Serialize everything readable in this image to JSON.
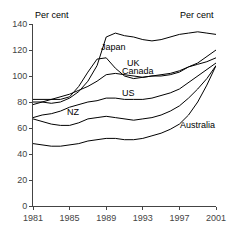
{
  "chart_data": {
    "type": "line",
    "x": [
      1981,
      1982,
      1983,
      1984,
      1985,
      1986,
      1987,
      1988,
      1989,
      1990,
      1991,
      1992,
      1993,
      1994,
      1995,
      1996,
      1997,
      1998,
      1999,
      2000,
      2001
    ],
    "series": [
      {
        "name": "Japan",
        "color": "#000000",
        "values": [
          80,
          80,
          79,
          80,
          83,
          88,
          96,
          108,
          130,
          133,
          131,
          130,
          128,
          127,
          128,
          130,
          132,
          133,
          134,
          133,
          132
        ]
      },
      {
        "name": "UK",
        "color": "#000000",
        "values": [
          82,
          82,
          82,
          82,
          84,
          92,
          103,
          113,
          114,
          106,
          100,
          98,
          99,
          100,
          100,
          101,
          103,
          107,
          110,
          115,
          120
        ]
      },
      {
        "name": "Canada",
        "color": "#000000",
        "values": [
          78,
          80,
          82,
          84,
          86,
          89,
          92,
          96,
          101,
          102,
          101,
          100,
          99,
          100,
          101,
          102,
          104,
          107,
          109,
          111,
          114
        ]
      },
      {
        "name": "US",
        "color": "#000000",
        "values": [
          68,
          70,
          71,
          73,
          76,
          78,
          80,
          81,
          83,
          83,
          82,
          82,
          82,
          83,
          85,
          87,
          90,
          95,
          100,
          105,
          110
        ]
      },
      {
        "name": "NZ",
        "color": "#000000",
        "values": [
          67,
          65,
          63,
          62,
          62,
          64,
          67,
          68,
          69,
          68,
          67,
          66,
          67,
          68,
          70,
          73,
          77,
          83,
          90,
          98,
          108
        ]
      },
      {
        "name": "Australia",
        "color": "#000000",
        "values": [
          48,
          47,
          46,
          46,
          47,
          48,
          50,
          51,
          52,
          52,
          51,
          51,
          52,
          54,
          56,
          59,
          63,
          70,
          80,
          93,
          108
        ]
      }
    ],
    "xlim": [
      1981,
      2001
    ],
    "xticks": [
      1981,
      1985,
      1989,
      1993,
      1997,
      2001
    ],
    "ylim": [
      0,
      140
    ],
    "yticks": [
      0,
      20,
      40,
      60,
      80,
      100,
      120,
      140
    ],
    "y2lim": [
      0,
      140
    ],
    "y2ticks": [
      0,
      20,
      40,
      60,
      80,
      100,
      120,
      140
    ],
    "ylabel": "Per cent",
    "y2label": "Per cent",
    "annotations": [
      {
        "text": "Japan",
        "x": 1988.2,
        "y": 122
      },
      {
        "text": "UK",
        "x": 1991.0,
        "y": 110
      },
      {
        "text": "Canada",
        "x": 1990.5,
        "y": 104
      },
      {
        "text": "US",
        "x": 1990.5,
        "y": 87
      },
      {
        "text": "NZ",
        "x": 1984.5,
        "y": 72
      },
      {
        "text": "Australia",
        "x": 1996.8,
        "y": 62
      }
    ],
    "grid": false
  }
}
